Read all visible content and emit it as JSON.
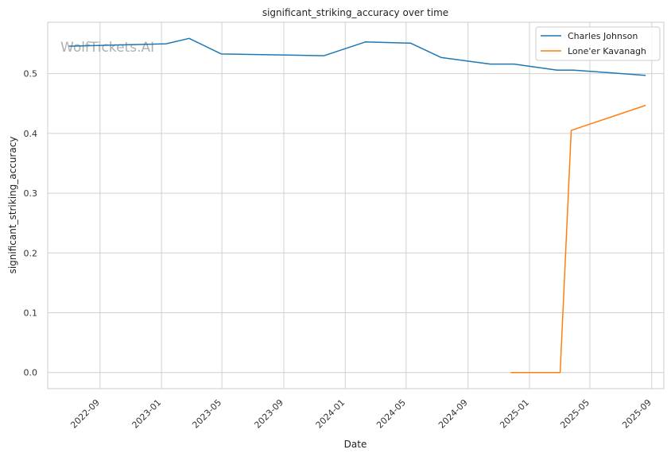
{
  "watermark": "WolfTickets.AI",
  "chart_data": {
    "type": "line",
    "title": "significant_striking_accuracy over time",
    "xlabel": "Date",
    "ylabel": "significant_striking_accuracy",
    "x_ticks": [
      "2022-09",
      "2023-01",
      "2023-05",
      "2023-09",
      "2024-01",
      "2024-05",
      "2024-09",
      "2025-01",
      "2025-05",
      "2025-09"
    ],
    "y_ticks": [
      0.0,
      0.1,
      0.2,
      0.3,
      0.4,
      0.5
    ],
    "xlim": [
      "2022-05-20",
      "2025-09-25"
    ],
    "ylim": [
      -0.027,
      0.586
    ],
    "grid": true,
    "legend_position": "top-right",
    "colors": {
      "Charles Johnson": "#1f77b4",
      "Lone'er Kavanagh": "#ff7f0e"
    },
    "series": [
      {
        "name": "Charles Johnson",
        "points": [
          {
            "x": "2022-07-01",
            "y": 0.546
          },
          {
            "x": "2023-01-10",
            "y": 0.55
          },
          {
            "x": "2023-02-25",
            "y": 0.559
          },
          {
            "x": "2023-04-30",
            "y": 0.533
          },
          {
            "x": "2023-11-20",
            "y": 0.53
          },
          {
            "x": "2024-02-10",
            "y": 0.553
          },
          {
            "x": "2024-05-10",
            "y": 0.551
          },
          {
            "x": "2024-07-10",
            "y": 0.527
          },
          {
            "x": "2024-10-15",
            "y": 0.516
          },
          {
            "x": "2024-12-01",
            "y": 0.516
          },
          {
            "x": "2025-02-25",
            "y": 0.506
          },
          {
            "x": "2025-03-30",
            "y": 0.506
          },
          {
            "x": "2025-08-20",
            "y": 0.497
          }
        ]
      },
      {
        "name": "Lone'er Kavanagh",
        "points": [
          {
            "x": "2024-11-25",
            "y": 0.0
          },
          {
            "x": "2025-03-03",
            "y": 0.0
          },
          {
            "x": "2025-03-25",
            "y": 0.405
          },
          {
            "x": "2025-08-20",
            "y": 0.447
          }
        ]
      }
    ]
  }
}
